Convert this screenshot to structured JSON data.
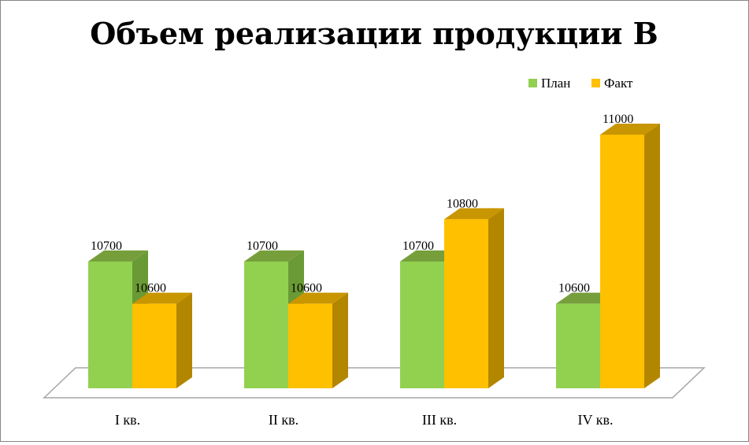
{
  "chart_data": {
    "type": "bar",
    "title": "Объем реализации продукции В",
    "categories": [
      "I кв.",
      "II кв.",
      "III кв.",
      "IV кв."
    ],
    "series": [
      {
        "name": "План",
        "values": [
          10700,
          10700,
          10700,
          10600
        ],
        "color": "#92d050",
        "side": "#6a9a35",
        "top": "#769f3c"
      },
      {
        "name": "Факт",
        "values": [
          10600,
          10600,
          10800,
          11000
        ],
        "color": "#ffc000",
        "side": "#b38600",
        "top": "#c89600"
      }
    ],
    "ylim": [
      10400,
      11000
    ],
    "legend_position": "top-right",
    "grid": false,
    "style": "3d-column"
  }
}
